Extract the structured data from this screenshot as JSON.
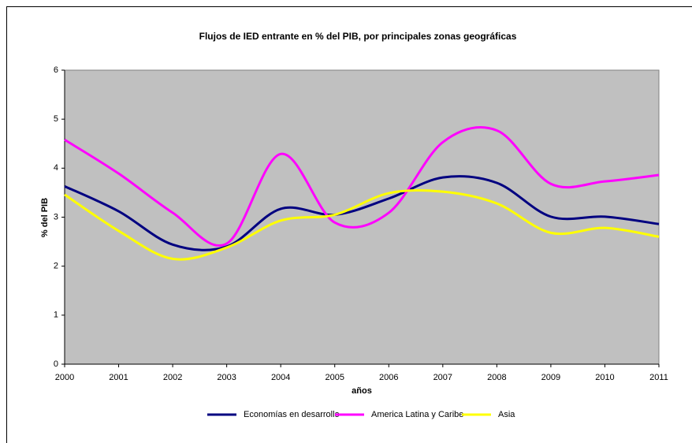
{
  "chart_data": {
    "type": "line",
    "title": "Flujos de IED entrante en % del PIB, por principales zonas geográficas",
    "x_label": "años",
    "y_label": "% del PIB",
    "x": [
      2000,
      2001,
      2002,
      2003,
      2004,
      2005,
      2006,
      2007,
      2008,
      2009,
      2010,
      2011
    ],
    "xlim": [
      2000,
      2011
    ],
    "xticks": [
      2000,
      2001,
      2002,
      2003,
      2004,
      2005,
      2006,
      2007,
      2008,
      2009,
      2010,
      2011
    ],
    "ylim": [
      0,
      6
    ],
    "yticks": [
      0,
      1,
      2,
      3,
      4,
      5,
      6
    ],
    "smooth": true,
    "legend": "bottom",
    "series": [
      {
        "name": "Economías en desarrollo",
        "color": "#000080",
        "values": [
          3.63,
          3.12,
          2.44,
          2.4,
          3.17,
          3.05,
          3.38,
          3.81,
          3.7,
          3.01,
          3.01,
          2.86
        ]
      },
      {
        "name": "America Latina y Caribe",
        "color": "#ff00ff",
        "values": [
          4.58,
          3.89,
          3.09,
          2.46,
          4.29,
          2.89,
          3.09,
          4.53,
          4.77,
          3.68,
          3.73,
          3.86
        ]
      },
      {
        "name": "Asia",
        "color": "#ffff00",
        "values": [
          3.46,
          2.72,
          2.15,
          2.38,
          2.93,
          3.05,
          3.49,
          3.52,
          3.28,
          2.68,
          2.78,
          2.6
        ]
      }
    ]
  }
}
